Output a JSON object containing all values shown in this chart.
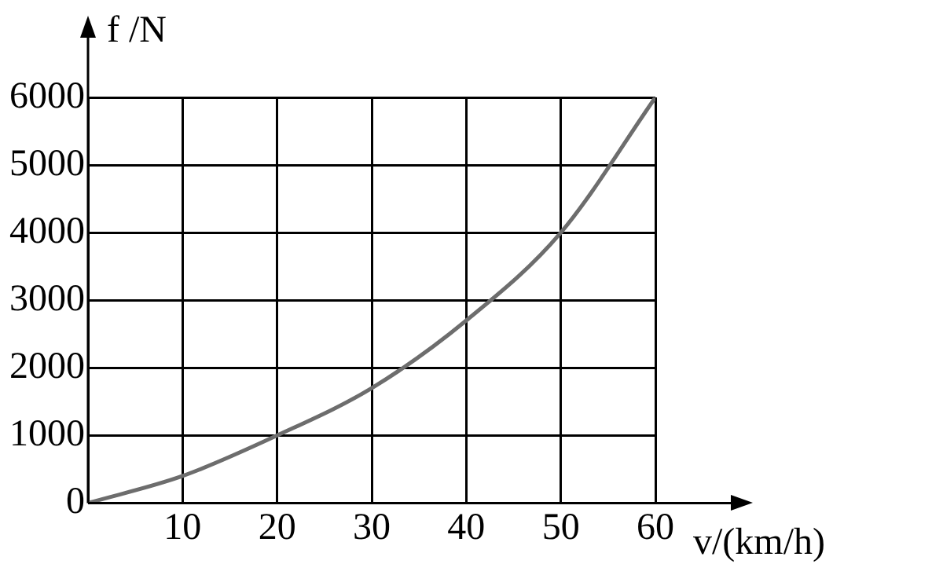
{
  "chart_data": {
    "type": "line",
    "xlabel": "v/(km/h)",
    "ylabel": "f /N",
    "x": [
      0,
      10,
      20,
      30,
      40,
      50,
      60
    ],
    "series": [
      {
        "color": "#6d6d6d",
        "values": [
          0,
          400,
          1000,
          1700,
          2700,
          4000,
          6000
        ]
      }
    ],
    "xlim": [
      0,
      60
    ],
    "ylim": [
      0,
      6000
    ],
    "xticks": [
      {
        "value": 0,
        "label": null
      },
      10,
      20,
      30,
      40,
      50,
      60
    ],
    "yticks": [
      0,
      1000,
      2000,
      3000,
      4000,
      5000,
      6000
    ],
    "grid": true,
    "legend": false,
    "marker": "none",
    "line_style": "solid"
  }
}
